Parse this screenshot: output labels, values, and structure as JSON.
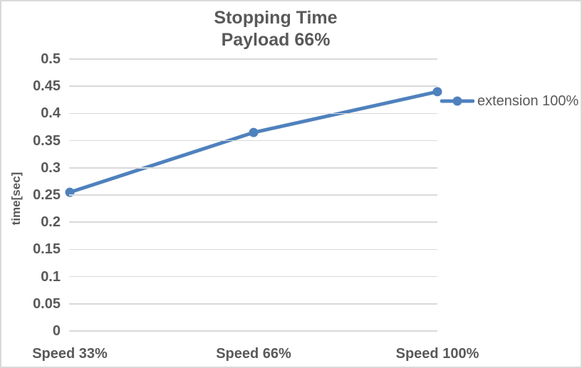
{
  "title": {
    "line1": "Stopping Time",
    "line2": "Payload 66%"
  },
  "colors": {
    "series": "#4F81BD",
    "gridline": "#D9D9D9",
    "text": "#595959",
    "border": "#D9D9D9",
    "background": "#FFFFFF"
  },
  "chart_data": {
    "type": "line",
    "title": "Stopping Time Payload 66%",
    "categories": [
      "Speed 33%",
      "Speed 66%",
      "Speed 100%"
    ],
    "series": [
      {
        "name": "extension 100%",
        "values": [
          0.255,
          0.365,
          0.44
        ],
        "color": "#4F81BD",
        "marker": "circle"
      }
    ],
    "xlabel": "",
    "ylabel": "time[sec]",
    "ylim": [
      0,
      0.5
    ],
    "ytick_step": 0.05,
    "grid": true,
    "legend_position": "right"
  }
}
